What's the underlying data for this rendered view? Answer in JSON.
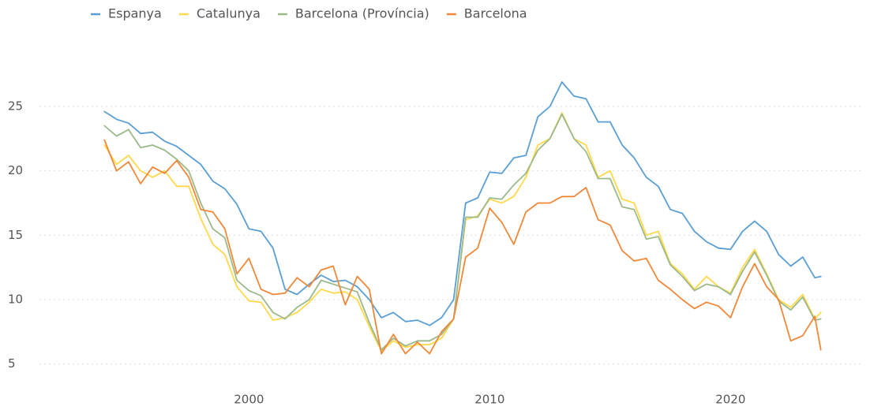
{
  "chart_data": {
    "type": "line",
    "x": [
      1994,
      1994.5,
      1995,
      1995.5,
      1996,
      1996.5,
      1997,
      1997.5,
      1998,
      1998.5,
      1999,
      1999.5,
      2000,
      2000.5,
      2001,
      2001.5,
      2002,
      2002.5,
      2003,
      2003.5,
      2004,
      2004.5,
      2005,
      2005.5,
      2006,
      2006.5,
      2007,
      2007.5,
      2008,
      2008.5,
      2009,
      2009.5,
      2010,
      2010.5,
      2011,
      2011.5,
      2012,
      2012.5,
      2013,
      2013.5,
      2014,
      2014.5,
      2015,
      2015.5,
      2016,
      2016.5,
      2017,
      2017.5,
      2018,
      2018.5,
      2019,
      2019.5,
      2020,
      2020.5,
      2021,
      2021.5,
      2022,
      2022.5,
      2023,
      2023.5,
      2023.75
    ],
    "series": [
      {
        "name": "Espanya",
        "color": "#5a9fd4",
        "values": [
          24.6,
          24.0,
          23.7,
          22.9,
          23.0,
          22.3,
          21.9,
          21.2,
          20.5,
          19.2,
          18.6,
          17.4,
          15.5,
          15.3,
          14.0,
          10.8,
          10.4,
          11.2,
          11.9,
          11.4,
          11.5,
          11.0,
          10.0,
          8.6,
          9.0,
          8.3,
          8.4,
          8.0,
          8.6,
          10.0,
          17.5,
          17.9,
          19.9,
          19.8,
          21.0,
          21.2,
          24.2,
          25.0,
          26.9,
          25.8,
          25.6,
          23.8,
          23.8,
          22.0,
          21.0,
          19.5,
          18.8,
          17.0,
          16.7,
          15.3,
          14.5,
          14.0,
          13.9,
          15.3,
          16.1,
          15.3,
          13.5,
          12.6,
          13.3,
          11.7,
          11.8
        ]
      },
      {
        "name": "Catalunya",
        "color": "#ffd94a",
        "values": [
          22.0,
          20.5,
          21.2,
          20.0,
          19.5,
          20.0,
          18.8,
          18.8,
          16.3,
          14.3,
          13.5,
          11.0,
          9.9,
          9.8,
          8.4,
          8.6,
          9.0,
          9.8,
          10.8,
          10.5,
          10.6,
          10.0,
          7.9,
          6.0,
          6.8,
          6.3,
          6.5,
          6.5,
          7.0,
          8.5,
          16.2,
          16.5,
          17.8,
          17.5,
          18.0,
          19.5,
          22.0,
          22.5,
          24.5,
          22.5,
          22.0,
          19.5,
          20.0,
          17.8,
          17.5,
          15.0,
          15.3,
          12.8,
          12.0,
          10.8,
          11.8,
          11.0,
          10.5,
          12.5,
          13.9,
          12.0,
          10.0,
          9.4,
          10.4,
          8.5,
          9.0
        ]
      },
      {
        "name": "Barcelona (Província)",
        "color": "#9cb98a",
        "values": [
          23.5,
          22.7,
          23.2,
          21.8,
          22.0,
          21.6,
          20.9,
          20.0,
          17.5,
          15.5,
          14.8,
          11.5,
          10.7,
          10.3,
          9.0,
          8.5,
          9.4,
          10.0,
          11.5,
          11.2,
          10.9,
          10.6,
          8.2,
          6.1,
          7.0,
          6.4,
          6.8,
          6.8,
          7.3,
          8.5,
          16.4,
          16.4,
          17.9,
          17.8,
          18.9,
          19.8,
          21.6,
          22.5,
          24.4,
          22.5,
          21.5,
          19.4,
          19.4,
          17.2,
          17.0,
          14.7,
          14.9,
          12.7,
          11.8,
          10.7,
          11.2,
          11.0,
          10.4,
          12.2,
          13.7,
          11.9,
          9.9,
          9.2,
          10.2,
          8.4,
          8.5
        ]
      },
      {
        "name": "Barcelona",
        "color": "#f0883a",
        "values": [
          22.4,
          20.0,
          20.7,
          19.0,
          20.3,
          19.8,
          20.8,
          19.5,
          17.0,
          16.8,
          15.5,
          12.0,
          13.2,
          10.8,
          10.4,
          10.5,
          11.7,
          11.0,
          12.3,
          12.6,
          9.6,
          11.8,
          10.8,
          5.8,
          7.3,
          5.8,
          6.7,
          5.8,
          7.5,
          8.5,
          13.3,
          14.0,
          17.1,
          16.0,
          14.3,
          16.8,
          17.5,
          17.5,
          18.0,
          18.0,
          18.7,
          16.2,
          15.8,
          13.8,
          13.0,
          13.2,
          11.5,
          10.8,
          10.0,
          9.3,
          9.8,
          9.5,
          8.6,
          11.0,
          12.8,
          11.0,
          10.0,
          6.8,
          7.2,
          8.7,
          6.1
        ]
      }
    ],
    "xlim": [
      1991.3,
      2025.4
    ],
    "xticks": [
      2000,
      2010,
      2020
    ],
    "ylim": [
      4,
      28
    ],
    "yticks": [
      5,
      10,
      15,
      20,
      25
    ],
    "grid": true,
    "legend": "top-left"
  }
}
